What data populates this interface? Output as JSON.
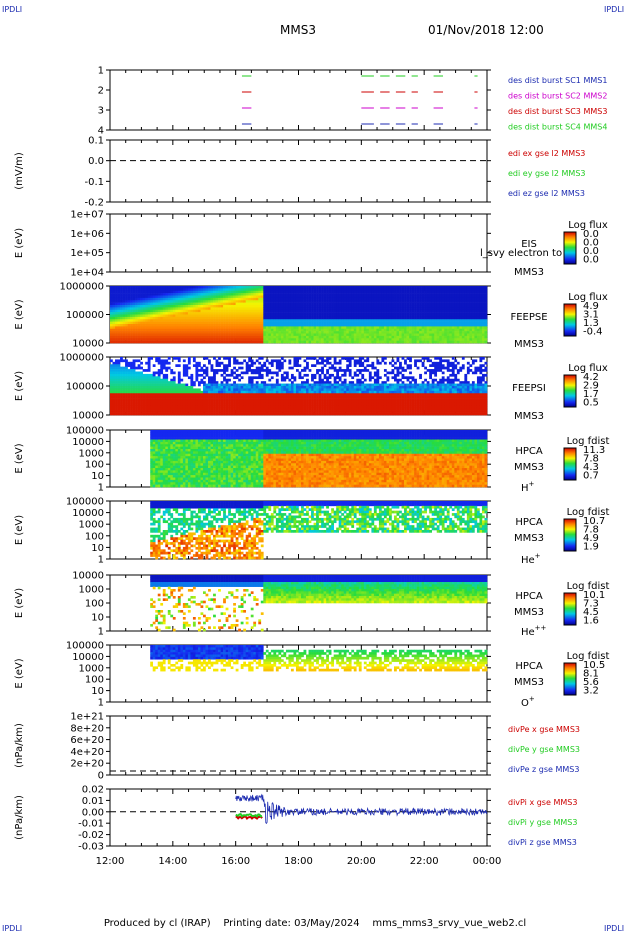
{
  "header": {
    "mission": "MMS3",
    "datetime": "01/Nov/2018 12:00",
    "logo": "IPDLI"
  },
  "footer": {
    "produced_by": "Produced by cl (IRAP)",
    "printing_date": "Printing date: 03/May/2024",
    "file": "mms_mms3_srvy_vue_web2.cl"
  },
  "colors": {
    "black": "#000000",
    "red": "#cc0000",
    "green": "#22cc22",
    "blue": "#1c2bb0",
    "magenta": "#cc00cc",
    "spectro_bg": "#1030d0"
  },
  "chart_data": [
    {
      "id": "burst",
      "type": "timeline",
      "yticks": [
        "1",
        "2",
        "3",
        "4"
      ],
      "legend": [
        {
          "text": "des dist burst SC1 MMS1",
          "color": "#1c2bb0"
        },
        {
          "text": "des dist burst SC2 MMS2",
          "color": "#cc00cc"
        },
        {
          "text": "des dist burst SC3 MMS3",
          "color": "#cc0000"
        },
        {
          "text": "des dist burst SC4 MMS4",
          "color": "#22cc22"
        }
      ],
      "segments": [
        [
          16.2,
          16.5
        ],
        [
          20.0,
          20.4
        ],
        [
          20.6,
          20.9
        ],
        [
          21.1,
          21.4
        ],
        [
          21.6,
          21.8
        ],
        [
          22.3,
          22.6
        ],
        [
          23.6,
          23.7
        ]
      ]
    },
    {
      "id": "edi",
      "type": "line",
      "ylabel": "(mV/m)",
      "yticks": [
        "0.1",
        "0.0",
        "-0.1",
        "-0.2"
      ],
      "legend": [
        {
          "text": "edi ex gse l2 MMS3",
          "color": "#cc0000"
        },
        {
          "text": "edi ey gse l2 MMS3",
          "color": "#22cc22"
        },
        {
          "text": "edi ez gse l2 MMS3",
          "color": "#1c2bb0"
        }
      ]
    },
    {
      "id": "eis",
      "type": "heatmap",
      "ylabel": "E (eV)",
      "yticks": [
        "1e+07",
        "1e+06",
        "1e+05",
        "1e+04"
      ],
      "side": [
        "EIS",
        "MMS3"
      ],
      "overlay": "l_svy electron to",
      "cbar_title": "Log flux",
      "cbar_ticks": [
        "0.0",
        "0.0",
        "0.0",
        "0.0"
      ]
    },
    {
      "id": "feepse",
      "type": "heatmap",
      "ylabel": "E (eV)",
      "yticks": [
        "1000000",
        "100000",
        "10000"
      ],
      "side": [
        "FEEPSE",
        "MMS3"
      ],
      "cbar_title": "Log flux",
      "cbar_ticks": [
        "4.9",
        "3.1",
        "1.3",
        "-0.4"
      ]
    },
    {
      "id": "feepsi",
      "type": "heatmap",
      "ylabel": "E (eV)",
      "yticks": [
        "1000000",
        "100000",
        "10000"
      ],
      "side": [
        "FEEPSI",
        "MMS3"
      ],
      "cbar_title": "Log flux",
      "cbar_ticks": [
        "4.2",
        "2.9",
        "1.7",
        "0.5"
      ]
    },
    {
      "id": "hpca_h",
      "type": "heatmap",
      "ylabel": "E (eV)",
      "yticks": [
        "100000",
        "10000",
        "1000",
        "100",
        "10",
        "1"
      ],
      "side": [
        "HPCA",
        "MMS3"
      ],
      "species": "H",
      "charge": "+",
      "cbar_title": "Log fdist",
      "cbar_ticks": [
        "11.3",
        "7.8",
        "4.3",
        "0.7"
      ]
    },
    {
      "id": "hpca_he",
      "type": "heatmap",
      "ylabel": "E (eV)",
      "yticks": [
        "100000",
        "10000",
        "1000",
        "100",
        "10",
        "1"
      ],
      "side": [
        "HPCA",
        "MMS3"
      ],
      "species": "He",
      "charge": "+",
      "cbar_title": "Log fdist",
      "cbar_ticks": [
        "10.7",
        "7.8",
        "4.9",
        "1.9"
      ]
    },
    {
      "id": "hpca_hepp",
      "type": "heatmap",
      "ylabel": "E (eV)",
      "yticks": [
        "10000",
        "1000",
        "100",
        "10",
        "1"
      ],
      "side": [
        "HPCA",
        "MMS3"
      ],
      "species": "He",
      "charge": "++",
      "cbar_title": "Log fdist",
      "cbar_ticks": [
        "10.1",
        "7.3",
        "4.5",
        "1.6"
      ]
    },
    {
      "id": "hpca_o",
      "type": "heatmap",
      "ylabel": "E (eV)",
      "yticks": [
        "100000",
        "10000",
        "1000",
        "100",
        "10",
        "1"
      ],
      "side": [
        "HPCA",
        "MMS3"
      ],
      "species": "O",
      "charge": "+",
      "cbar_title": "Log fdist",
      "cbar_ticks": [
        "10.5",
        "8.1",
        "5.6",
        "3.2"
      ]
    },
    {
      "id": "divpe",
      "type": "line",
      "ylabel": "(nPa/km)",
      "yticks": [
        "1e+21",
        "8e+20",
        "6e+20",
        "4e+20",
        "2e+20",
        "0"
      ],
      "legend": [
        {
          "text": "divPe x gse MMS3",
          "color": "#cc0000"
        },
        {
          "text": "divPe y gse MMS3",
          "color": "#22cc22"
        },
        {
          "text": "divPe z gse MMS3",
          "color": "#1c2bb0"
        }
      ]
    },
    {
      "id": "divpi",
      "type": "line",
      "ylabel": "(nPa/km)",
      "yticks": [
        "0.02",
        "0.01",
        "0.00",
        "-0.01",
        "-0.02",
        "-0.03"
      ],
      "ylim": [
        -0.03,
        0.02
      ],
      "legend": [
        {
          "text": "divPi x gse MMS3",
          "color": "#cc0000"
        },
        {
          "text": "divPi y gse MMS3",
          "color": "#22cc22"
        },
        {
          "text": "divPi z gse MMS3",
          "color": "#1c2bb0"
        }
      ],
      "xticks": [
        "12:00",
        "14:00",
        "16:00",
        "18:00",
        "20:00",
        "22:00",
        "00:00"
      ],
      "xlim_hours": [
        12,
        24
      ]
    }
  ]
}
